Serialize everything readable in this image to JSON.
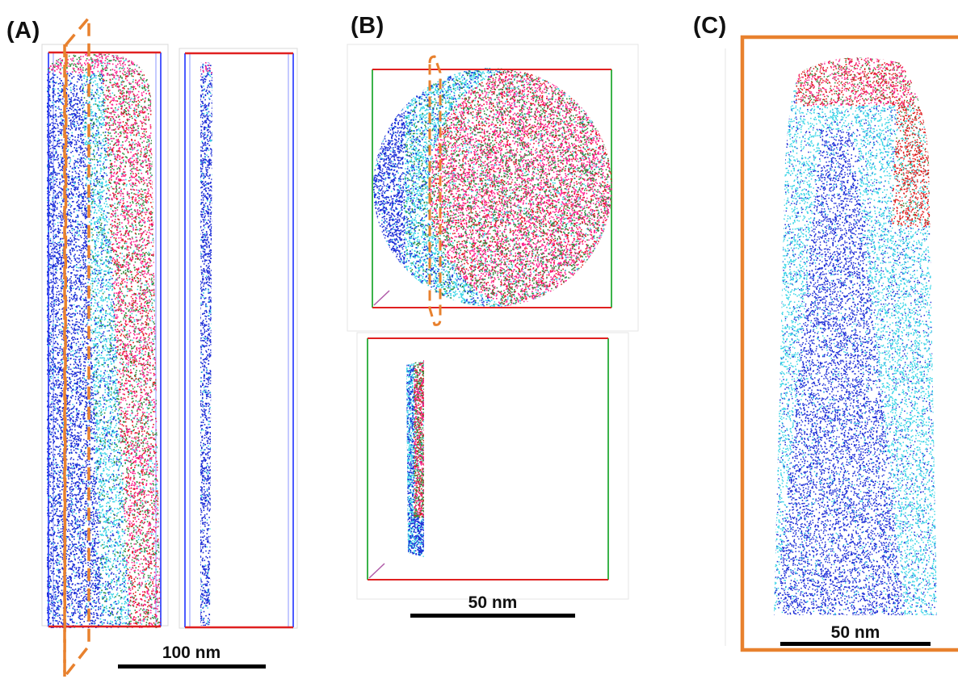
{
  "panels": [
    {
      "label": "(A)",
      "scale_text": "100 nm"
    },
    {
      "label": "(B)",
      "scale_text": "50 nm"
    },
    {
      "label": "(C)",
      "scale_text": "50 nm"
    }
  ],
  "colors": {
    "blue": "#1a2bd6",
    "cyan": "#36d4e6",
    "magenta": "#ff1f8e",
    "green": "#2f8a3a",
    "red": "#e01818",
    "orange": "#e8812e",
    "box_red": "#e02020",
    "box_green": "#3bb34a",
    "box_blue": "#4d5bff"
  }
}
